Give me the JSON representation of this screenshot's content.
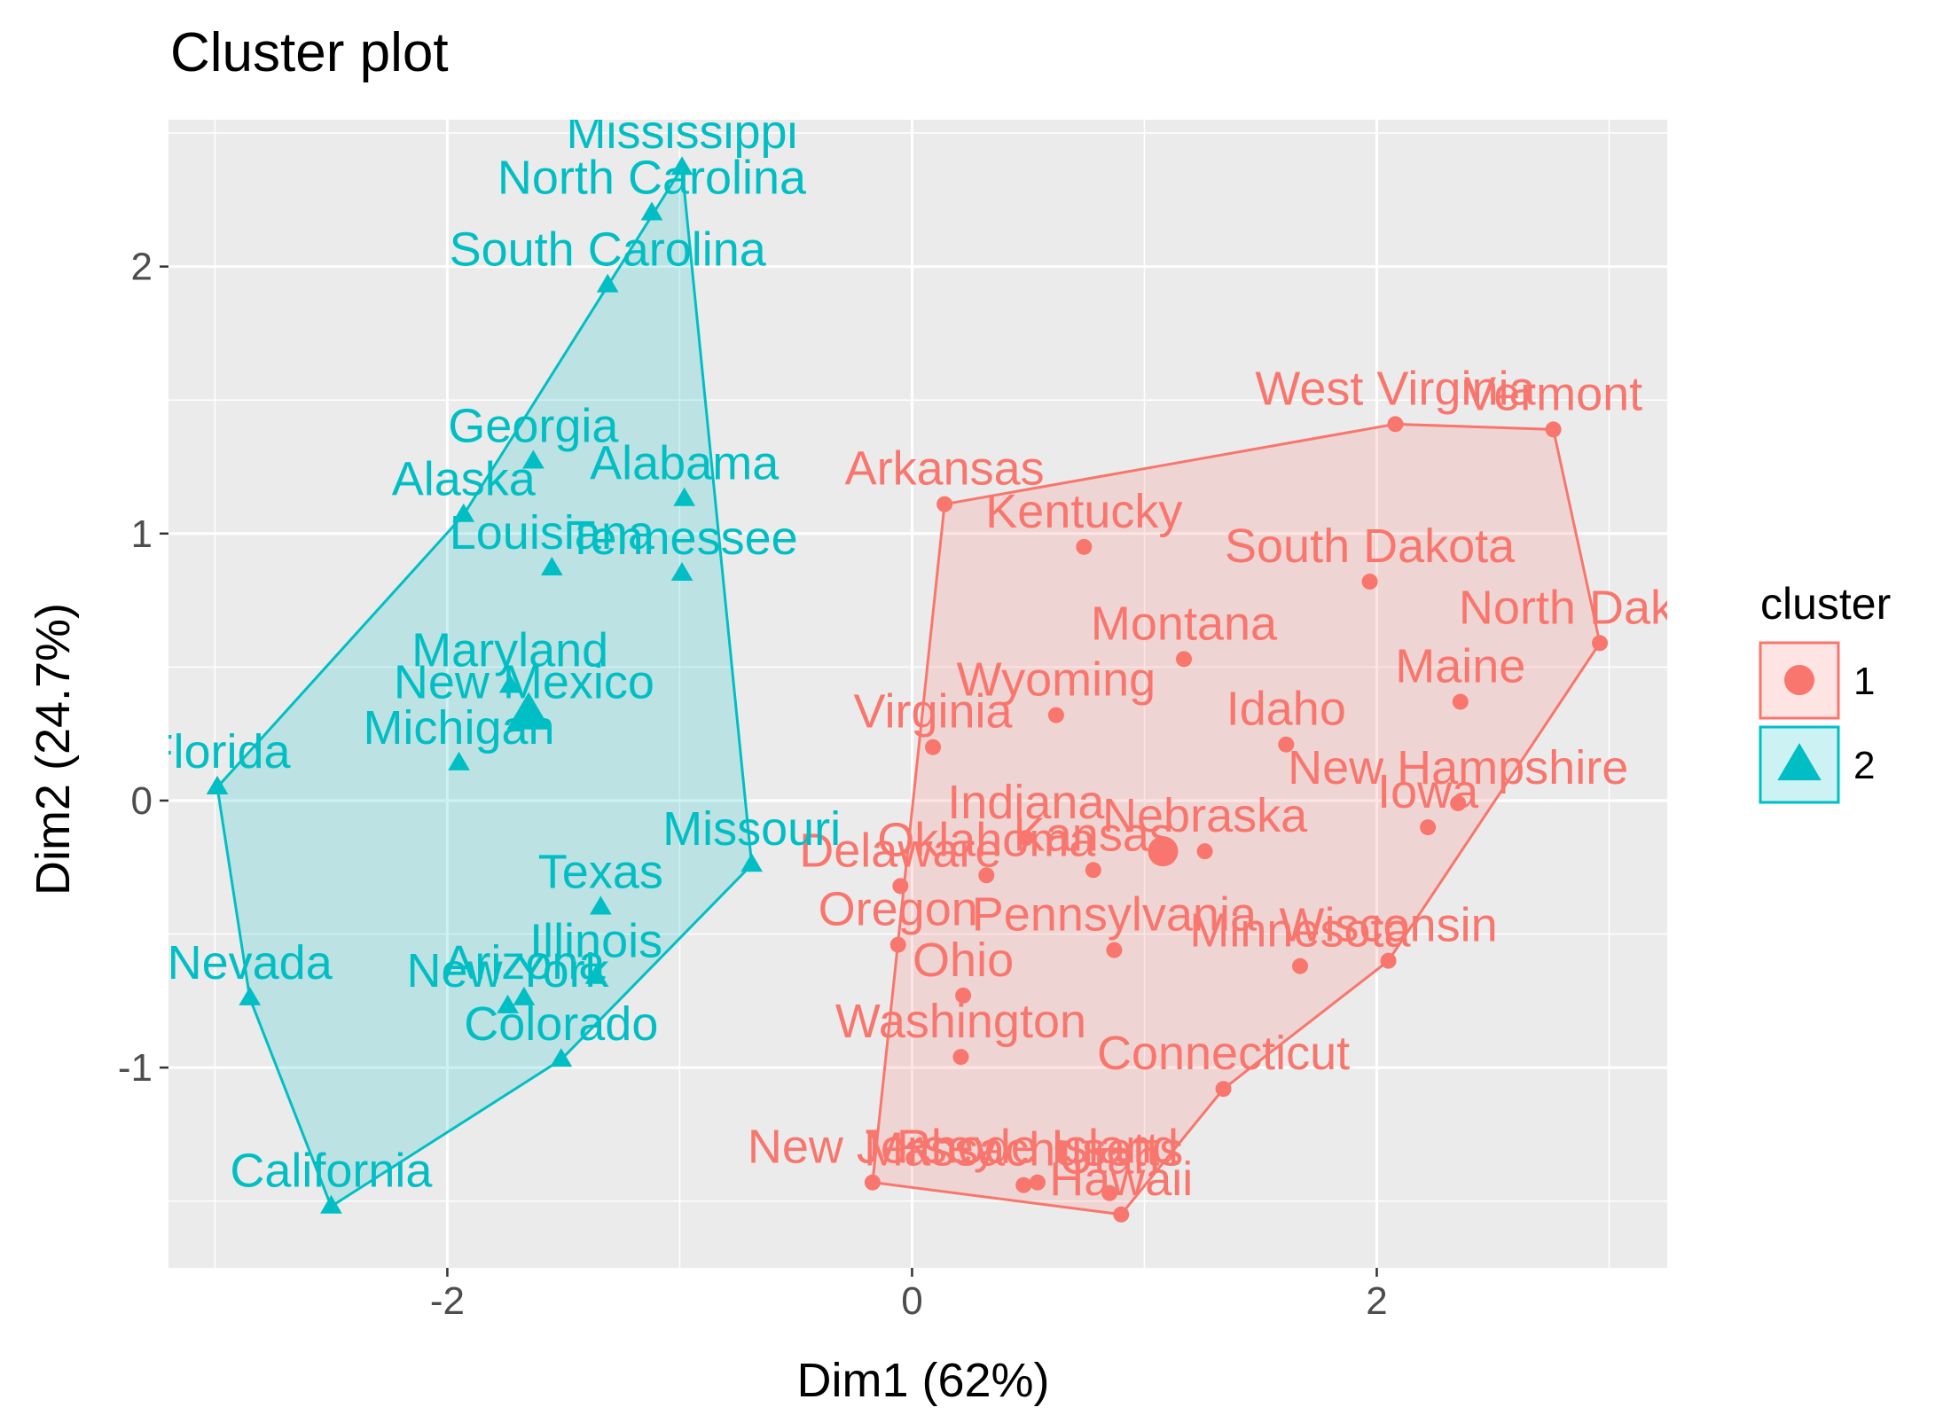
{
  "chart_data": {
    "type": "scatter",
    "title": "Cluster plot",
    "xlabel": "Dim1 (62%)",
    "ylabel": "Dim2 (24.7%)",
    "xlim": [
      -3.2,
      3.25
    ],
    "ylim": [
      -1.75,
      2.55
    ],
    "x_ticks": [
      -2,
      0,
      2
    ],
    "y_ticks": [
      -1,
      0,
      1,
      2
    ],
    "grid": true,
    "legend_title": "cluster",
    "legend_position": "right",
    "colors": {
      "1": "#F8766D",
      "2": "#00BFC4"
    },
    "series": [
      {
        "name": "1",
        "marker": "circle",
        "centroid": {
          "x": 1.08,
          "y": -0.19
        },
        "hull": [
          "Arkansas",
          "West Virginia",
          "Vermont",
          "North Dakota",
          "Wisconsin",
          "Connecticut",
          "Hawaii",
          "New Jersey"
        ],
        "points": [
          {
            "label": "Arkansas",
            "x": 0.14,
            "y": 1.11
          },
          {
            "label": "Kentucky",
            "x": 0.74,
            "y": 0.95
          },
          {
            "label": "West Virginia",
            "x": 2.08,
            "y": 1.41
          },
          {
            "label": "Vermont",
            "x": 2.76,
            "y": 1.39
          },
          {
            "label": "South Dakota",
            "x": 1.97,
            "y": 0.82
          },
          {
            "label": "North Dakota",
            "x": 2.96,
            "y": 0.59
          },
          {
            "label": "Montana",
            "x": 1.17,
            "y": 0.53
          },
          {
            "label": "Maine",
            "x": 2.36,
            "y": 0.37
          },
          {
            "label": "Wyoming",
            "x": 0.62,
            "y": 0.32
          },
          {
            "label": "Idaho",
            "x": 1.61,
            "y": 0.21
          },
          {
            "label": "Virginia",
            "x": 0.09,
            "y": 0.2
          },
          {
            "label": "New Hampshire",
            "x": 2.35,
            "y": -0.01
          },
          {
            "label": "Iowa",
            "x": 2.22,
            "y": -0.1
          },
          {
            "label": "Indiana",
            "x": 0.49,
            "y": -0.14
          },
          {
            "label": "Nebraska",
            "x": 1.26,
            "y": -0.19
          },
          {
            "label": "Kansas",
            "x": 0.78,
            "y": -0.26
          },
          {
            "label": "Oklahoma",
            "x": 0.32,
            "y": -0.28
          },
          {
            "label": "Delaware",
            "x": -0.05,
            "y": -0.32
          },
          {
            "label": "Oregon",
            "x": -0.06,
            "y": -0.54
          },
          {
            "label": "Pennsylvania",
            "x": 0.87,
            "y": -0.56
          },
          {
            "label": "Wisconsin",
            "x": 2.05,
            "y": -0.6
          },
          {
            "label": "Minnesota",
            "x": 1.67,
            "y": -0.62
          },
          {
            "label": "Ohio",
            "x": 0.22,
            "y": -0.73
          },
          {
            "label": "Washington",
            "x": 0.21,
            "y": -0.96
          },
          {
            "label": "Connecticut",
            "x": 1.34,
            "y": -1.08
          },
          {
            "label": "New Jersey",
            "x": -0.17,
            "y": -1.43
          },
          {
            "label": "Massachusetts",
            "x": 0.48,
            "y": -1.44
          },
          {
            "label": "Rhode Island",
            "x": 0.54,
            "y": -1.43
          },
          {
            "label": "Utah",
            "x": 0.85,
            "y": -1.47
          },
          {
            "label": "Hawaii",
            "x": 0.9,
            "y": -1.55
          }
        ]
      },
      {
        "name": "2",
        "marker": "triangle",
        "centroid": {
          "x": -1.65,
          "y": 0.32
        },
        "hull": [
          "Mississippi",
          "Missouri",
          "Colorado",
          "California",
          "Nevada",
          "Florida",
          "Alaska"
        ],
        "points": [
          {
            "label": "Mississippi",
            "x": -0.99,
            "y": 2.37
          },
          {
            "label": "North Carolina",
            "x": -1.12,
            "y": 2.2
          },
          {
            "label": "South Carolina",
            "x": -1.31,
            "y": 1.93
          },
          {
            "label": "Georgia",
            "x": -1.63,
            "y": 1.27
          },
          {
            "label": "Alaska",
            "x": -1.93,
            "y": 1.07
          },
          {
            "label": "Alabama",
            "x": -0.98,
            "y": 1.13
          },
          {
            "label": "Louisiana",
            "x": -1.55,
            "y": 0.87
          },
          {
            "label": "Tennessee",
            "x": -0.99,
            "y": 0.85
          },
          {
            "label": "Maryland",
            "x": -1.73,
            "y": 0.43
          },
          {
            "label": "New Mexico",
            "x": -1.67,
            "y": 0.31
          },
          {
            "label": "Florida",
            "x": -2.99,
            "y": 0.05
          },
          {
            "label": "Michigan",
            "x": -1.95,
            "y": 0.14
          },
          {
            "label": "Missouri",
            "x": -0.69,
            "y": -0.24
          },
          {
            "label": "Texas",
            "x": -1.34,
            "y": -0.4
          },
          {
            "label": "Illinois",
            "x": -1.36,
            "y": -0.66
          },
          {
            "label": "Arizona",
            "x": -1.67,
            "y": -0.74
          },
          {
            "label": "New York",
            "x": -1.74,
            "y": -0.77
          },
          {
            "label": "Colorado",
            "x": -1.51,
            "y": -0.97
          },
          {
            "label": "Nevada",
            "x": -2.85,
            "y": -0.74
          },
          {
            "label": "California",
            "x": -2.5,
            "y": -1.52
          }
        ]
      }
    ]
  }
}
